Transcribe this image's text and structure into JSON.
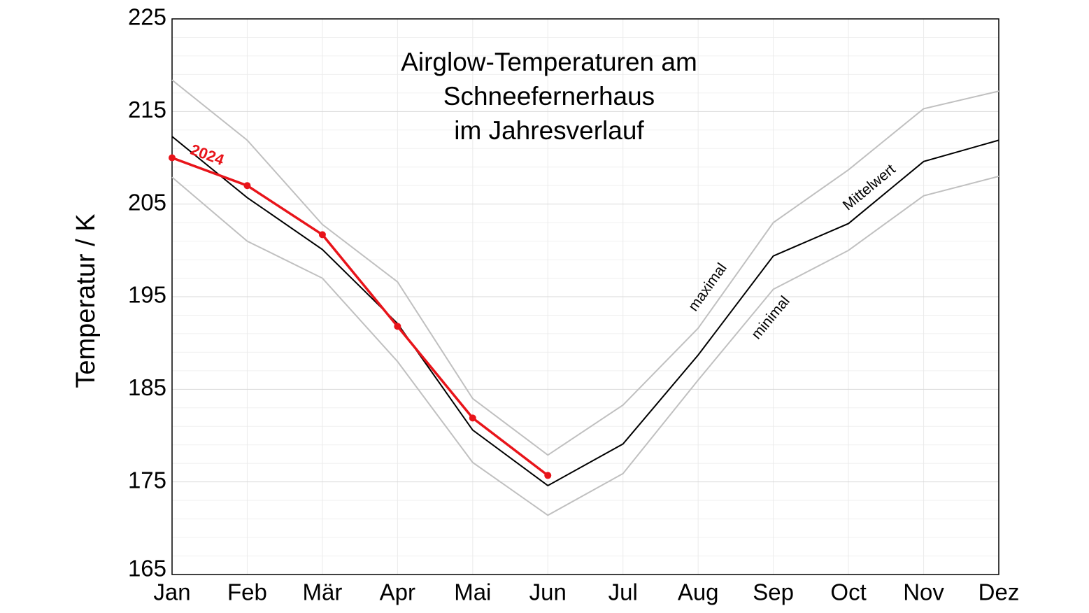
{
  "chart_data": {
    "type": "line",
    "title": [
      "Airglow-Temperaturen am",
      "Schneefernerhaus",
      "im Jahresverlauf"
    ],
    "y_label": "Temperatur / K",
    "categories": [
      "Jan",
      "Feb",
      "Mär",
      "Apr",
      "Mai",
      "Jun",
      "Jul",
      "Aug",
      "Sep",
      "Oct",
      "Nov",
      "Dez"
    ],
    "ylim": [
      165,
      225
    ],
    "yticks": [
      165,
      175,
      185,
      195,
      205,
      215,
      225
    ],
    "yminorticks": [
      167,
      169,
      171,
      173,
      177,
      179,
      181,
      183,
      187,
      189,
      191,
      193,
      197,
      199,
      201,
      203,
      207,
      209,
      211,
      213,
      217,
      219,
      221,
      223
    ],
    "grid": true,
    "series": [
      {
        "name": "maximal",
        "color": "#c0c0c0",
        "values": [
          218.4,
          211.9,
          202.8,
          196.6,
          184.0,
          177.9,
          183.3,
          191.6,
          203.0,
          208.7,
          215.3,
          217.2
        ]
      },
      {
        "name": "minimal",
        "color": "#c0c0c0",
        "values": [
          207.9,
          201.0,
          197.0,
          188.0,
          177.1,
          171.4,
          175.9,
          186.0,
          195.8,
          200.0,
          205.9,
          208.0
        ]
      },
      {
        "name": "Mittelwert",
        "color": "#000000",
        "values": [
          212.3,
          205.7,
          200.1,
          192.1,
          180.6,
          174.6,
          179.1,
          188.7,
          199.4,
          202.9,
          209.6,
          211.9
        ]
      },
      {
        "name": "2024",
        "color": "#e8141a",
        "values": [
          210.0,
          207.0,
          201.7,
          191.8,
          181.9,
          175.7,
          null,
          null,
          null,
          null,
          null,
          null
        ]
      }
    ]
  }
}
